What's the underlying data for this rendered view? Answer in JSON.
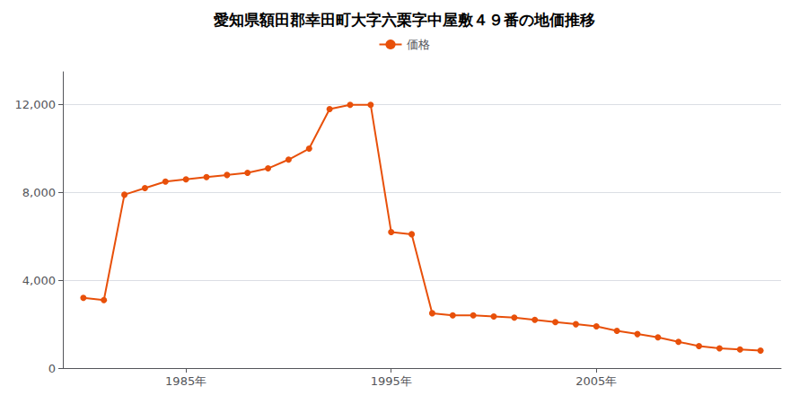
{
  "chart_data": {
    "type": "line",
    "title": "愛知県額田郡幸田町大字六栗字中屋敷４９番の地価推移",
    "x": [
      1980,
      1981,
      1982,
      1983,
      1984,
      1985,
      1986,
      1987,
      1988,
      1989,
      1990,
      1991,
      1992,
      1993,
      1994,
      1995,
      1996,
      1997,
      1998,
      1999,
      2000,
      2001,
      2002,
      2003,
      2004,
      2005,
      2006,
      2007,
      2008,
      2009,
      2010,
      2011,
      2012,
      2013
    ],
    "series": [
      {
        "name": "価格",
        "color": "#E8500A",
        "marker": "circle",
        "values": [
          3200,
          3100,
          7900,
          8200,
          8500,
          8600,
          8700,
          8800,
          8900,
          9100,
          9500,
          10000,
          11800,
          12000,
          12000,
          6200,
          6100,
          2500,
          2400,
          2400,
          2350,
          2300,
          2200,
          2100,
          2000,
          1900,
          1700,
          1550,
          1400,
          1200,
          1000,
          900,
          850,
          800
        ]
      }
    ],
    "xlim": [
      1979,
      2014
    ],
    "xticks": [
      {
        "value": 1985,
        "label": "1985年"
      },
      {
        "value": 1995,
        "label": "1995年"
      },
      {
        "value": 2005,
        "label": "2005年"
      }
    ],
    "ylim": [
      0,
      13500
    ],
    "yticks": [
      0,
      {
        "value": 4000,
        "label": "4,000"
      },
      {
        "value": 8000,
        "label": "8,000"
      },
      {
        "value": 12000,
        "label": "12,000"
      }
    ],
    "grid": true,
    "legend": "top"
  }
}
